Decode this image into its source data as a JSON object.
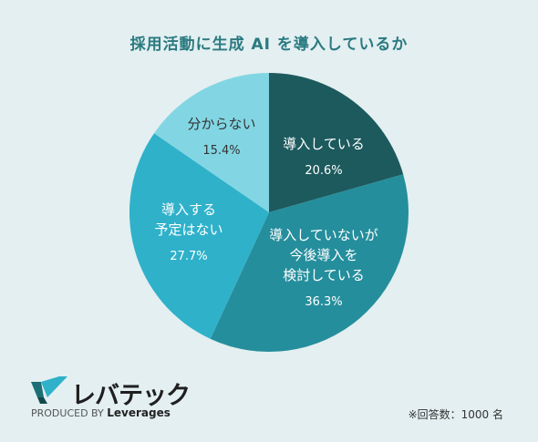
{
  "chart_data": {
    "type": "pie",
    "title": "採用活動に生成 AI を導入しているか",
    "slices": [
      {
        "label_lines": [
          "導入している"
        ],
        "value": 20.6,
        "value_label": "20.6%",
        "color": "#1d5a5e"
      },
      {
        "label_lines": [
          "導入していないが",
          "今後導入を",
          "検討している"
        ],
        "value": 36.3,
        "value_label": "36.3%",
        "color": "#258e9c"
      },
      {
        "label_lines": [
          "導入する",
          "予定はない"
        ],
        "value": 27.7,
        "value_label": "27.7%",
        "color": "#2fb1ca"
      },
      {
        "label_lines": [
          "分からない"
        ],
        "value": 15.4,
        "value_label": "15.4%",
        "color": "#82d6e4"
      }
    ]
  },
  "logo": {
    "name": "レバテック",
    "produced_by": "PRODUCED BY",
    "company": "Leverages"
  },
  "note": "※回答数：1000 名"
}
